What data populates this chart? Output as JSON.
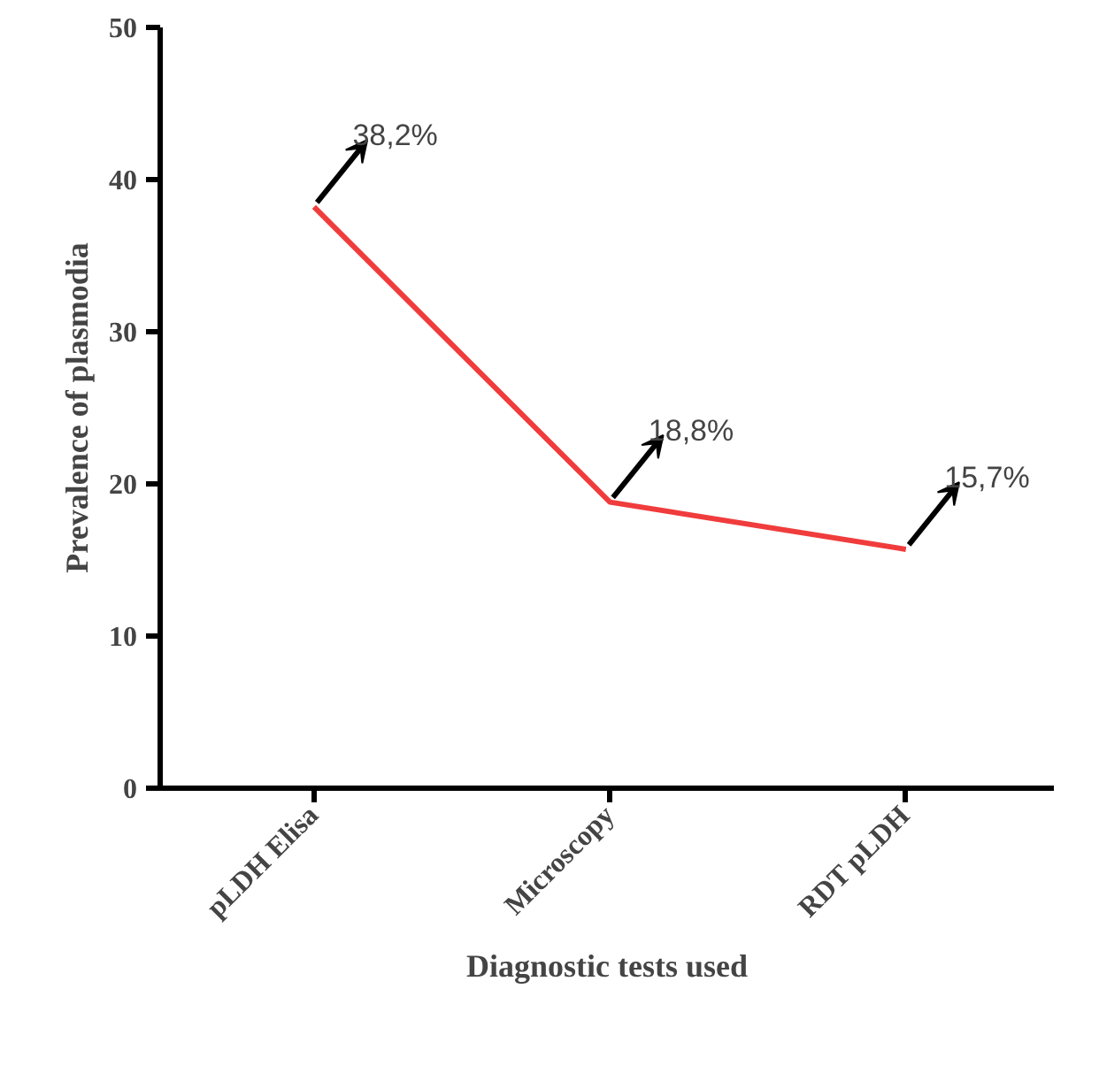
{
  "chart_data": {
    "type": "line",
    "xlabel": "Diagnostic tests used",
    "ylabel": "Prevalence of plasmodia",
    "categories": [
      "pLDH Elisa",
      "Microscopy",
      "RDT pLDH"
    ],
    "series": [
      {
        "color": "#f03c3c",
        "values": [
          38.2,
          18.8,
          15.7
        ],
        "value_labels": [
          "38,2%",
          "18,8%",
          "15,7%"
        ]
      }
    ],
    "ylim": [
      0,
      50
    ],
    "yticks": [
      0,
      10,
      20,
      30,
      40,
      50
    ],
    "marker": "none",
    "line_style": "solid"
  }
}
